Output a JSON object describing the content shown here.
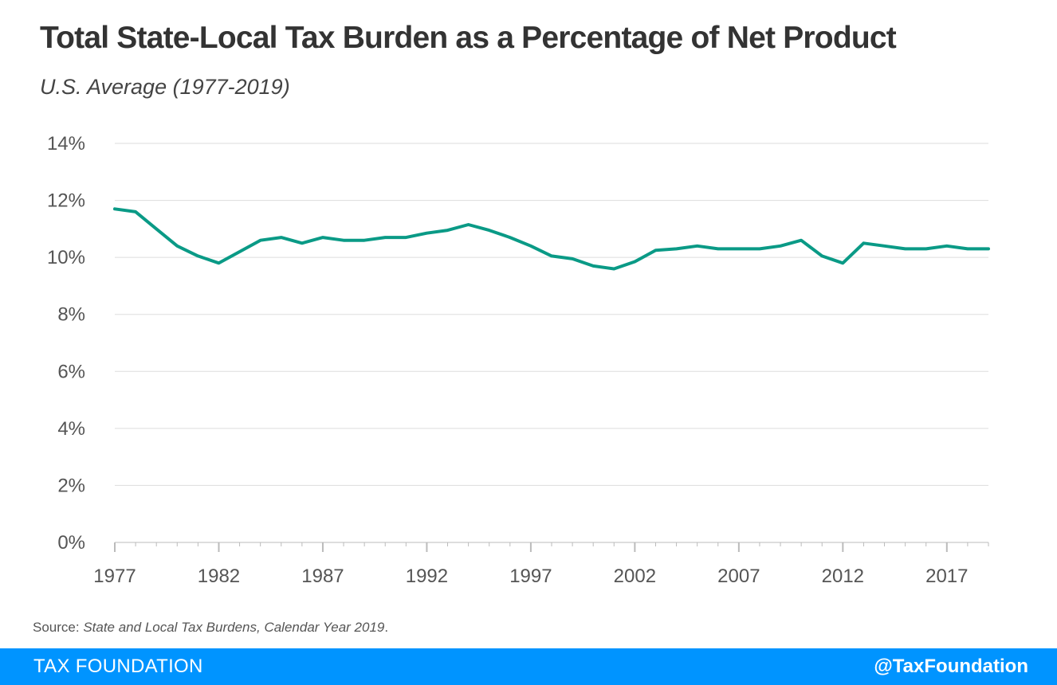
{
  "header": {
    "title": "Total State-Local Tax Burden as a Percentage of Net Product",
    "subtitle": "U.S. Average (1977-2019)"
  },
  "source": {
    "label": "Source: ",
    "title": "State and Local Tax Burdens, Calendar Year 2019",
    "suffix": "."
  },
  "footer": {
    "brand": "TAX FOUNDATION",
    "handle": "@TaxFoundation"
  },
  "colors": {
    "line": "#0a9a86",
    "footer": "#0094ff",
    "grid": "#dddddd",
    "axis_text": "#555555"
  },
  "chart_data": {
    "type": "line",
    "title": "Total State-Local Tax Burden as a Percentage of Net Product",
    "subtitle": "U.S. Average (1977-2019)",
    "xlabel": "",
    "ylabel": "",
    "x": [
      1977,
      1978,
      1979,
      1980,
      1981,
      1982,
      1983,
      1984,
      1985,
      1986,
      1987,
      1988,
      1989,
      1990,
      1991,
      1992,
      1993,
      1994,
      1995,
      1996,
      1997,
      1998,
      1999,
      2000,
      2001,
      2002,
      2003,
      2004,
      2005,
      2006,
      2007,
      2008,
      2009,
      2010,
      2011,
      2012,
      2013,
      2014,
      2015,
      2016,
      2017,
      2018,
      2019
    ],
    "series": [
      {
        "values": [
          11.7,
          11.6,
          11.0,
          10.4,
          10.05,
          9.8,
          10.2,
          10.6,
          10.7,
          10.5,
          10.7,
          10.6,
          10.6,
          10.7,
          10.7,
          10.85,
          10.95,
          11.15,
          10.95,
          10.7,
          10.4,
          10.05,
          9.95,
          9.7,
          9.6,
          9.85,
          10.25,
          10.3,
          10.4,
          10.3,
          10.3,
          10.3,
          10.4,
          10.6,
          10.05,
          9.8,
          10.5,
          10.4,
          10.3,
          10.3,
          10.4,
          10.3,
          10.3
        ]
      }
    ],
    "xlim": [
      1977,
      2019
    ],
    "ylim": [
      0,
      14
    ],
    "x_ticks": [
      "1977",
      "1982",
      "1987",
      "1992",
      "1997",
      "2002",
      "2007",
      "2012",
      "2017"
    ],
    "y_ticks": [
      "0%",
      "2%",
      "4%",
      "6%",
      "8%",
      "10%",
      "12%",
      "14%"
    ],
    "grid": true,
    "legend": "none"
  }
}
